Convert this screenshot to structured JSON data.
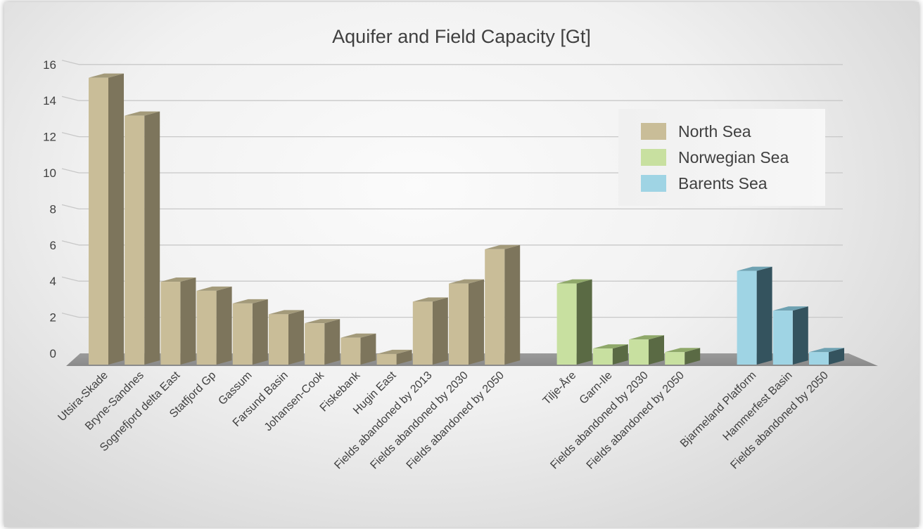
{
  "chart_data": {
    "type": "bar",
    "title": "Aquifer and Field Capacity [Gt]",
    "ylim": [
      0,
      16
    ],
    "yticks": [
      0,
      2,
      4,
      6,
      8,
      10,
      12,
      14,
      16
    ],
    "grid": true,
    "legend_position": "top-right",
    "series": [
      {
        "name": "North Sea",
        "color": "#c9bd98",
        "side_color": "#7d755c",
        "top_color": "#a39a7a",
        "points": [
          {
            "label": "Utsira-Skade",
            "value": 15.5
          },
          {
            "label": "Bryne-Sandnes",
            "value": 13.4
          },
          {
            "label": "Sognefjord delta East",
            "value": 4.2
          },
          {
            "label": "Statfjord Gp",
            "value": 3.7
          },
          {
            "label": "Gassum",
            "value": 3.0
          },
          {
            "label": "Farsund Basin",
            "value": 2.4
          },
          {
            "label": "Johansen-Cook",
            "value": 1.9
          },
          {
            "label": "Fiskebank",
            "value": 1.1
          },
          {
            "label": "Hugin East",
            "value": 0.2
          },
          {
            "label": "Fields abandoned by 2013",
            "value": 3.1
          },
          {
            "label": "Fields abandoned by 2030",
            "value": 4.1
          },
          {
            "label": "Fields abandoned by 2050",
            "value": 6.0
          }
        ]
      },
      {
        "name": "Norwegian Sea",
        "color": "#c8e0a0",
        "side_color": "#5a6a44",
        "top_color": "#8fa86a",
        "points": [
          {
            "label": "Tilje-Åre",
            "value": 4.1
          },
          {
            "label": "Garn-Ile",
            "value": 0.5
          },
          {
            "label": "Fields abandoned by 2030",
            "value": 1.0
          },
          {
            "label": "Fields abandoned by 2050",
            "value": 0.3
          }
        ]
      },
      {
        "name": "Barents Sea",
        "color": "#9fd4e4",
        "side_color": "#34535e",
        "top_color": "#6fa2b2",
        "points": [
          {
            "label": "Bjarmeland Platform",
            "value": 4.8
          },
          {
            "label": "Hammerfest Basin",
            "value": 2.6
          },
          {
            "label": "Fields abandoned by 2050",
            "value": 0.3
          }
        ]
      }
    ]
  }
}
